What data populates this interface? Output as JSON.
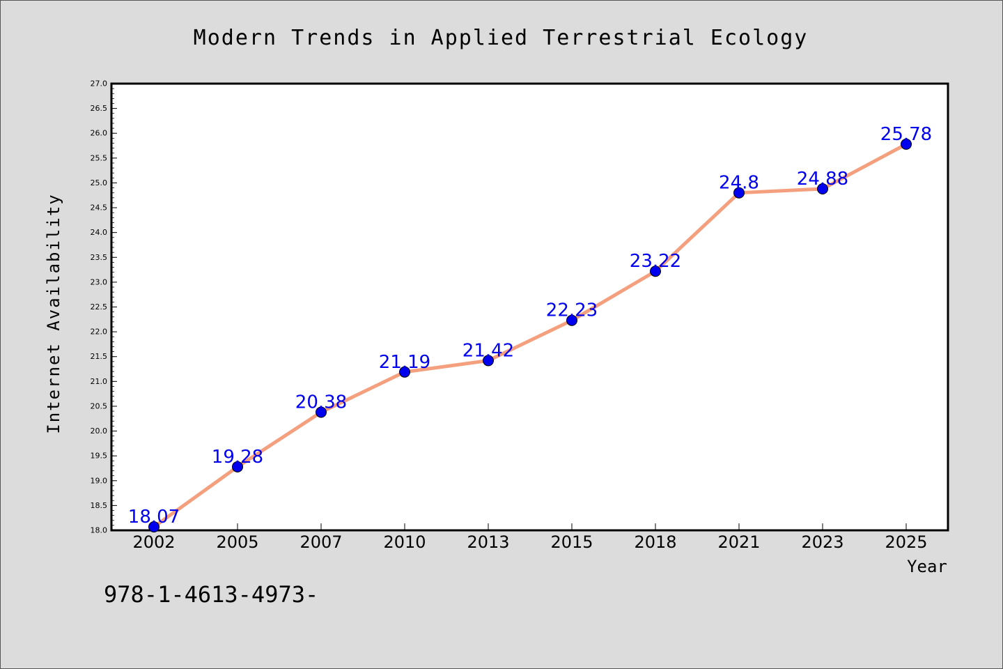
{
  "chart_data": {
    "type": "line",
    "title": "Modern Trends in Applied Terrestrial Ecology",
    "xlabel": "Year",
    "ylabel": "Internet Availability",
    "categories": [
      "2002",
      "2005",
      "2007",
      "2010",
      "2013",
      "2015",
      "2018",
      "2021",
      "2023",
      "2025"
    ],
    "series": [
      {
        "values": [
          18.07,
          19.28,
          20.38,
          21.19,
          21.42,
          22.23,
          23.22,
          24.8,
          24.88,
          25.78
        ],
        "labels": [
          "18.07",
          "19.28",
          "20.38",
          "21.19",
          "21.42",
          "22.23",
          "23.22",
          "24.8",
          "24.88",
          "25.78"
        ],
        "line_color": "#f4a07e",
        "marker_color": "#0000ee",
        "label_color": "#0000ee"
      }
    ],
    "ylim": [
      18.0,
      27.0
    ],
    "yticks": [
      "18.0",
      "18.5",
      "19.0",
      "19.5",
      "20.0",
      "20.5",
      "21.0",
      "21.5",
      "22.0",
      "22.5",
      "23.0",
      "23.5",
      "24.0",
      "24.5",
      "25.0",
      "25.5",
      "26.0",
      "26.5",
      "27.0"
    ],
    "grid": false,
    "legend": "none"
  },
  "footer_text": "978-1-4613-4973-"
}
